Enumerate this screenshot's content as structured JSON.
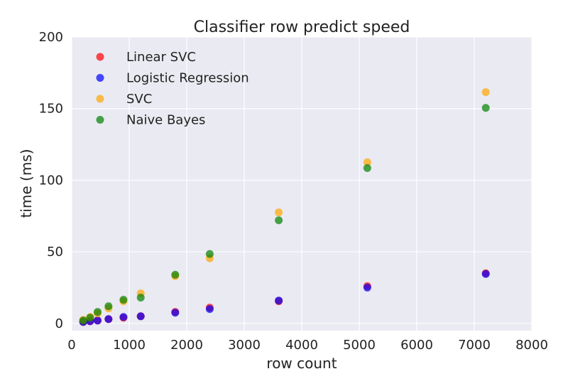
{
  "chart_data": {
    "type": "scatter",
    "title": "Classifier row predict speed",
    "xlabel": "row count",
    "ylabel": "time (ms)",
    "xlim": [
      0,
      8000
    ],
    "ylim": [
      -5,
      200
    ],
    "xticks": [
      0,
      1000,
      2000,
      3000,
      4000,
      5000,
      6000,
      7000,
      8000
    ],
    "yticks": [
      0,
      50,
      100,
      150,
      200
    ],
    "grid": true,
    "legend_position": "top-left",
    "background": "#EAEAF2",
    "series": [
      {
        "name": "Linear SVC",
        "color": "#FF0000",
        "points": [
          {
            "x": 200,
            "y": 1
          },
          {
            "x": 320,
            "y": 1.5
          },
          {
            "x": 450,
            "y": 2
          },
          {
            "x": 640,
            "y": 3
          },
          {
            "x": 900,
            "y": 4
          },
          {
            "x": 1200,
            "y": 5
          },
          {
            "x": 1800,
            "y": 8
          },
          {
            "x": 2400,
            "y": 11
          },
          {
            "x": 3600,
            "y": 15.5
          },
          {
            "x": 5140,
            "y": 26
          },
          {
            "x": 7200,
            "y": 35
          }
        ]
      },
      {
        "name": "Logistic Regression",
        "color": "#0000FF",
        "points": [
          {
            "x": 200,
            "y": 1
          },
          {
            "x": 320,
            "y": 1.5
          },
          {
            "x": 450,
            "y": 2
          },
          {
            "x": 640,
            "y": 3
          },
          {
            "x": 900,
            "y": 4.5
          },
          {
            "x": 1200,
            "y": 5
          },
          {
            "x": 1800,
            "y": 7.5
          },
          {
            "x": 2400,
            "y": 10
          },
          {
            "x": 3600,
            "y": 16
          },
          {
            "x": 5140,
            "y": 25
          },
          {
            "x": 7200,
            "y": 34.5
          }
        ]
      },
      {
        "name": "SVC",
        "color": "#FFA500",
        "points": [
          {
            "x": 200,
            "y": 2.5
          },
          {
            "x": 320,
            "y": 4.5
          },
          {
            "x": 450,
            "y": 7
          },
          {
            "x": 640,
            "y": 10.5
          },
          {
            "x": 900,
            "y": 15.5
          },
          {
            "x": 1200,
            "y": 21
          },
          {
            "x": 1800,
            "y": 33
          },
          {
            "x": 2400,
            "y": 45.5
          },
          {
            "x": 3600,
            "y": 77.5
          },
          {
            "x": 5140,
            "y": 112.5
          },
          {
            "x": 7200,
            "y": 161.5
          }
        ]
      },
      {
        "name": "Naive Bayes",
        "color": "#008000",
        "points": [
          {
            "x": 200,
            "y": 2
          },
          {
            "x": 320,
            "y": 4
          },
          {
            "x": 450,
            "y": 8
          },
          {
            "x": 640,
            "y": 12
          },
          {
            "x": 900,
            "y": 16.5
          },
          {
            "x": 1200,
            "y": 18
          },
          {
            "x": 1800,
            "y": 34
          },
          {
            "x": 2400,
            "y": 48.5
          },
          {
            "x": 3600,
            "y": 72
          },
          {
            "x": 5140,
            "y": 108.5
          },
          {
            "x": 7200,
            "y": 150.5
          }
        ]
      }
    ]
  }
}
